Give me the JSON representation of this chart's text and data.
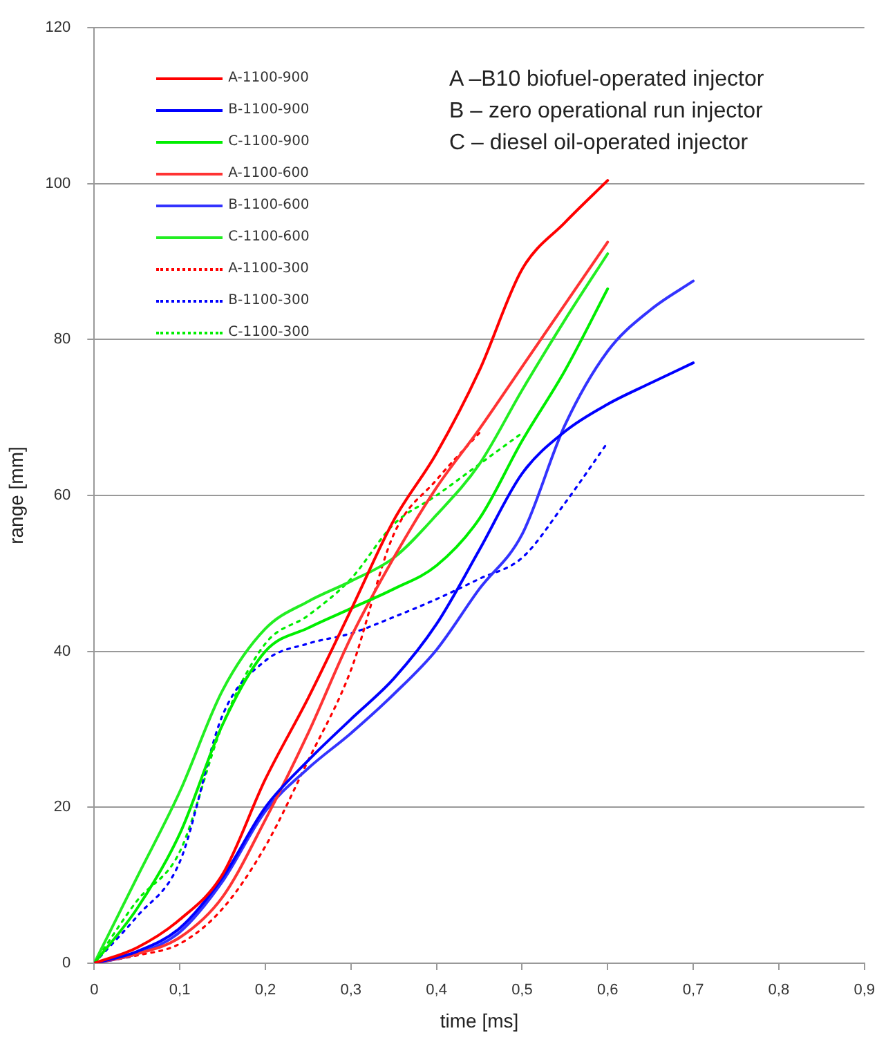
{
  "chart_data": {
    "type": "line",
    "xlabel": "time [ms]",
    "ylabel": "range [mm]",
    "annotations": [
      "A –B10 biofuel-operated injector",
      "B – zero operational run injector",
      "C – diesel  oil-operated injector"
    ],
    "xlim": [
      0,
      0.9
    ],
    "xticks": [
      0,
      {
        "value": 0.1,
        "label": "0,1"
      },
      {
        "value": 0.2,
        "label": "0,2"
      },
      {
        "value": 0.3,
        "label": "0,3"
      },
      {
        "value": 0.4,
        "label": "0,4"
      },
      {
        "value": 0.5,
        "label": "0,5"
      },
      {
        "value": 0.6,
        "label": "0,6"
      },
      {
        "value": 0.7,
        "label": "0,7"
      },
      {
        "value": 0.8,
        "label": "0,8"
      },
      {
        "value": 0.9,
        "label": "0,9"
      }
    ],
    "ylim": [
      0,
      120
    ],
    "yticks": [
      0,
      20,
      40,
      60,
      80,
      100,
      120
    ],
    "grid": "y",
    "legend": "top left",
    "marker": "none",
    "series": [
      {
        "name": "A-1100-900",
        "color": "#ff0000",
        "line_style": "solid",
        "x": [
          0,
          0.05,
          0.1,
          0.15,
          0.2,
          0.25,
          0.3,
          0.35,
          0.4,
          0.45,
          0.5,
          0.55,
          0.6
        ],
        "values": [
          0,
          2,
          5.6,
          11.4,
          23.6,
          34,
          45.3,
          56.8,
          65.4,
          76,
          89,
          95,
          100.4
        ]
      },
      {
        "name": "B-1100-900",
        "color": "#0000ff",
        "line_style": "solid",
        "x": [
          0,
          0.05,
          0.1,
          0.15,
          0.2,
          0.25,
          0.3,
          0.35,
          0.4,
          0.45,
          0.5,
          0.55,
          0.6,
          0.65,
          0.7
        ],
        "values": [
          0,
          1.5,
          4.5,
          11,
          20,
          26,
          31.3,
          36.5,
          43.5,
          53,
          62.8,
          68.2,
          71.7,
          74.4,
          77
        ]
      },
      {
        "name": "C-1100-900",
        "color": "#00ee00",
        "line_style": "solid",
        "x": [
          0,
          0.05,
          0.1,
          0.15,
          0.2,
          0.25,
          0.3,
          0.35,
          0.4,
          0.45,
          0.5,
          0.55,
          0.6
        ],
        "values": [
          0,
          7,
          16.6,
          30.6,
          40,
          43,
          45.5,
          48,
          51,
          57,
          67,
          76,
          86.5
        ]
      },
      {
        "name": "A-1100-600",
        "color": "#ff3333",
        "line_style": "solid",
        "x": [
          0,
          0.05,
          0.1,
          0.15,
          0.2,
          0.25,
          0.3,
          0.35,
          0.4,
          0.45,
          0.5,
          0.55,
          0.6
        ],
        "values": [
          0,
          1.2,
          3.3,
          8.5,
          18.4,
          29.5,
          41.8,
          52,
          61,
          68.5,
          76.5,
          84.5,
          92.5
        ]
      },
      {
        "name": "B-1100-600",
        "color": "#3333ff",
        "line_style": "solid",
        "x": [
          0,
          0.05,
          0.1,
          0.15,
          0.2,
          0.25,
          0.3,
          0.35,
          0.4,
          0.45,
          0.5,
          0.55,
          0.6,
          0.65,
          0.7
        ],
        "values": [
          0,
          1.2,
          4,
          10.5,
          19.5,
          25,
          29.5,
          34.5,
          40.2,
          48,
          55,
          69,
          78.5,
          83.8,
          87.5
        ]
      },
      {
        "name": "C-1100-600",
        "color": "#22ee22",
        "line_style": "solid",
        "x": [
          0,
          0.05,
          0.1,
          0.15,
          0.2,
          0.25,
          0.3,
          0.35,
          0.4,
          0.45,
          0.5,
          0.55,
          0.6
        ],
        "values": [
          0,
          11,
          22,
          35,
          42.9,
          46.4,
          49,
          52,
          57.5,
          64,
          73.5,
          82.5,
          91
        ]
      },
      {
        "name": "A-1100-300",
        "color": "#ff0000",
        "line_style": "dotted",
        "x": [
          0,
          0.05,
          0.1,
          0.15,
          0.2,
          0.25,
          0.3,
          0.35,
          0.4,
          0.45
        ],
        "values": [
          0,
          1,
          2.5,
          7,
          15,
          26,
          37.6,
          55,
          62,
          68
        ]
      },
      {
        "name": "B-1100-300",
        "color": "#0000ff",
        "line_style": "dotted",
        "x": [
          0,
          0.05,
          0.1,
          0.15,
          0.2,
          0.25,
          0.3,
          0.35,
          0.4,
          0.45,
          0.5,
          0.55,
          0.6
        ],
        "values": [
          0,
          6,
          13,
          31.8,
          38.8,
          41,
          42.3,
          44.4,
          46.7,
          49.3,
          52,
          59,
          66.8
        ]
      },
      {
        "name": "C-1100-300",
        "color": "#00ee00",
        "line_style": "dotted",
        "x": [
          0,
          0.05,
          0.1,
          0.15,
          0.2,
          0.25,
          0.3,
          0.35,
          0.4,
          0.45,
          0.5
        ],
        "values": [
          0,
          8,
          14.3,
          30.6,
          41,
          44.6,
          49.3,
          56.3,
          60,
          64,
          68
        ]
      }
    ]
  }
}
